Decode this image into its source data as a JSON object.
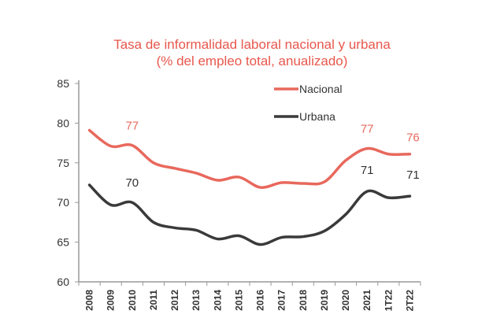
{
  "chart_data": {
    "type": "line",
    "title": "Tasa de informalidad laboral nacional y urbana",
    "subtitle": "(% del empleo total, anualizado)",
    "categories": [
      "2008",
      "2009",
      "2010",
      "2011",
      "2012",
      "2013",
      "2014",
      "2015",
      "2016",
      "2017",
      "2018",
      "2019",
      "2020",
      "2021",
      "1T22",
      "2T22"
    ],
    "ylim": [
      60,
      85
    ],
    "yticks": [
      60,
      65,
      70,
      75,
      80,
      85
    ],
    "grid": false,
    "legend_placement": "top-right",
    "series": [
      {
        "name": "Nacional",
        "color": "#e8685c",
        "values": [
          79.1,
          77.1,
          77.2,
          75.0,
          74.3,
          73.7,
          72.8,
          73.2,
          71.9,
          72.5,
          72.4,
          72.6,
          75.3,
          76.8,
          76.1,
          76.1
        ]
      },
      {
        "name": "Urbana",
        "color": "#3a3a3a",
        "values": [
          72.2,
          69.7,
          70.0,
          67.5,
          66.8,
          66.5,
          65.4,
          65.8,
          64.7,
          65.6,
          65.7,
          66.4,
          68.5,
          71.4,
          70.6,
          70.8
        ]
      }
    ],
    "annotations": [
      {
        "series": "Nacional",
        "category": "2010",
        "text": "77"
      },
      {
        "series": "Nacional",
        "category": "2021",
        "text": "77"
      },
      {
        "series": "Nacional",
        "category": "2T22",
        "text": "76"
      },
      {
        "series": "Urbana",
        "category": "2010",
        "text": "70"
      },
      {
        "series": "Urbana",
        "category": "2021",
        "text": "71"
      },
      {
        "series": "Urbana",
        "category": "2T22",
        "text": "71"
      }
    ]
  }
}
